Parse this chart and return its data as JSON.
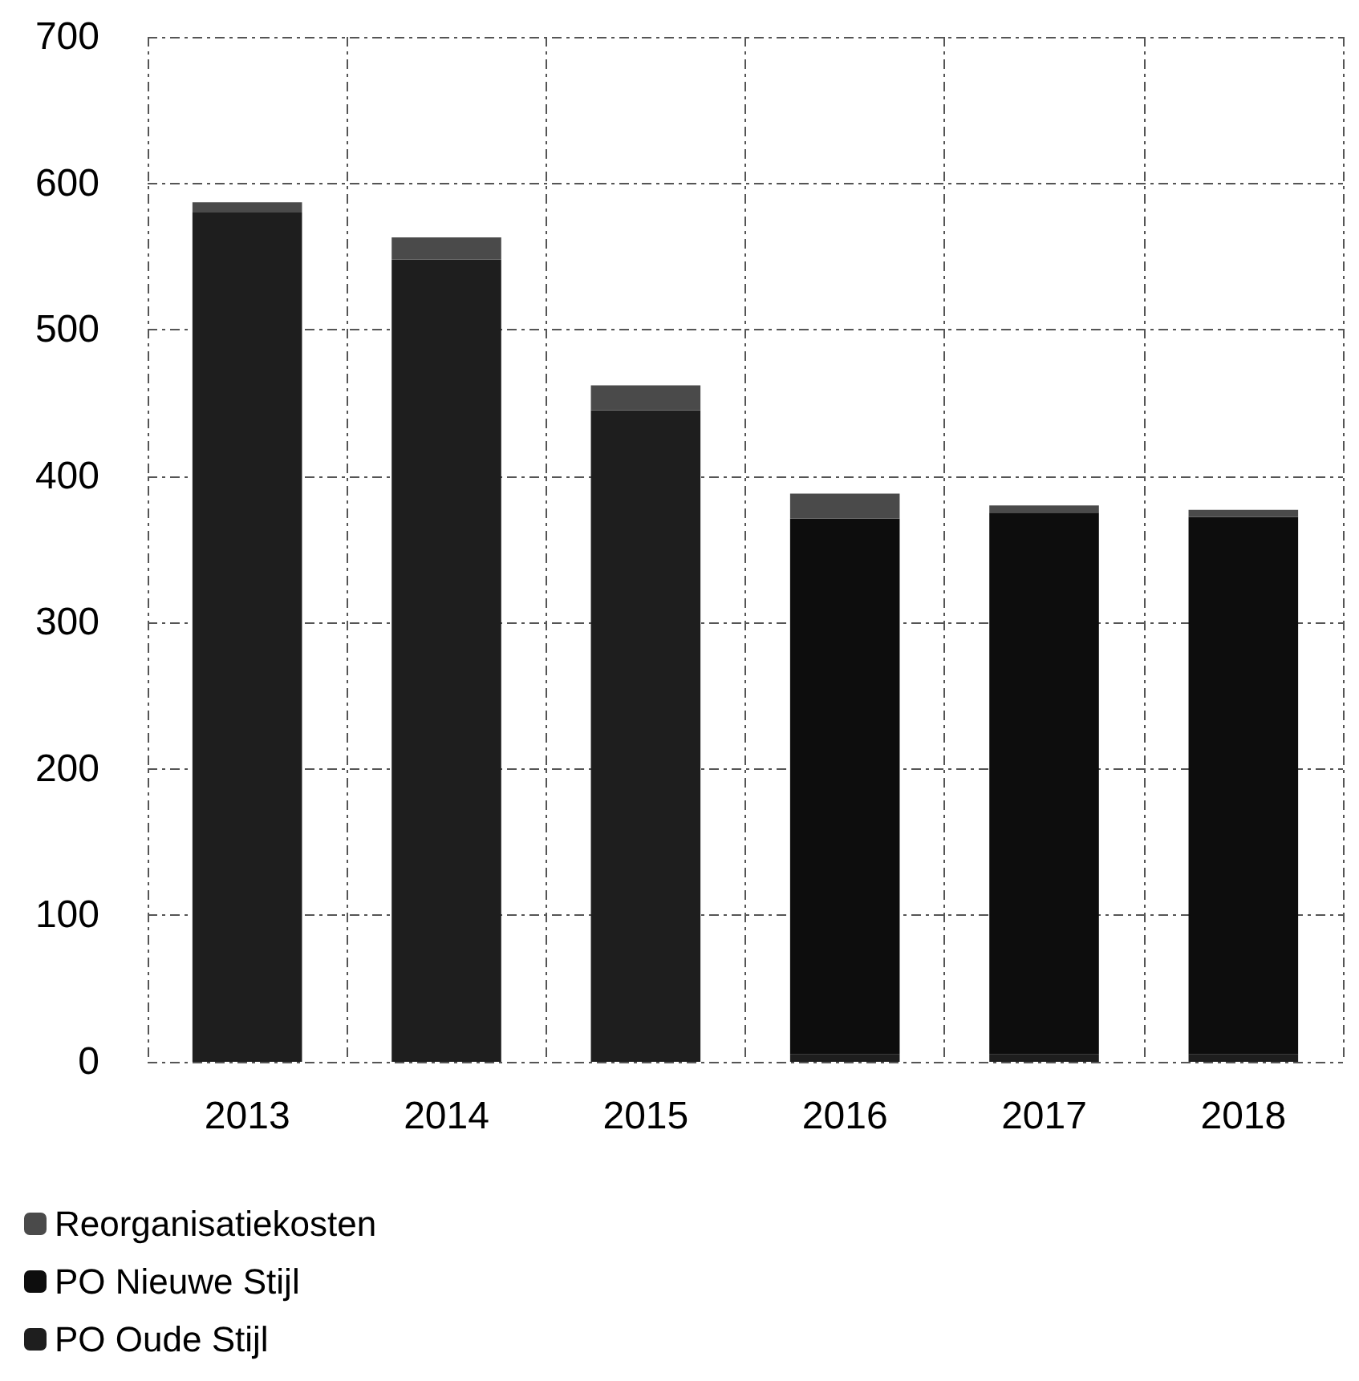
{
  "chart_data": {
    "type": "bar",
    "stacked": true,
    "categories": [
      "2013",
      "2014",
      "2015",
      "2016",
      "2017",
      "2018"
    ],
    "series": [
      {
        "name": "PO Oude Stijl",
        "color": "#1e1e1e",
        "values": [
          580,
          548,
          445,
          5,
          5,
          5
        ]
      },
      {
        "name": "PO Nieuwe Stijl",
        "color": "#0d0d0d",
        "values": [
          0,
          0,
          0,
          366,
          370,
          367
        ]
      },
      {
        "name": "Reorganisatiekosten",
        "color": "#4a4a4a",
        "values": [
          7,
          15,
          17,
          17,
          5,
          5
        ]
      }
    ],
    "ylim": [
      0,
      700
    ],
    "yticks": [
      0,
      100,
      200,
      300,
      400,
      500,
      600,
      700
    ],
    "grid": true,
    "legend": "bottom left"
  }
}
